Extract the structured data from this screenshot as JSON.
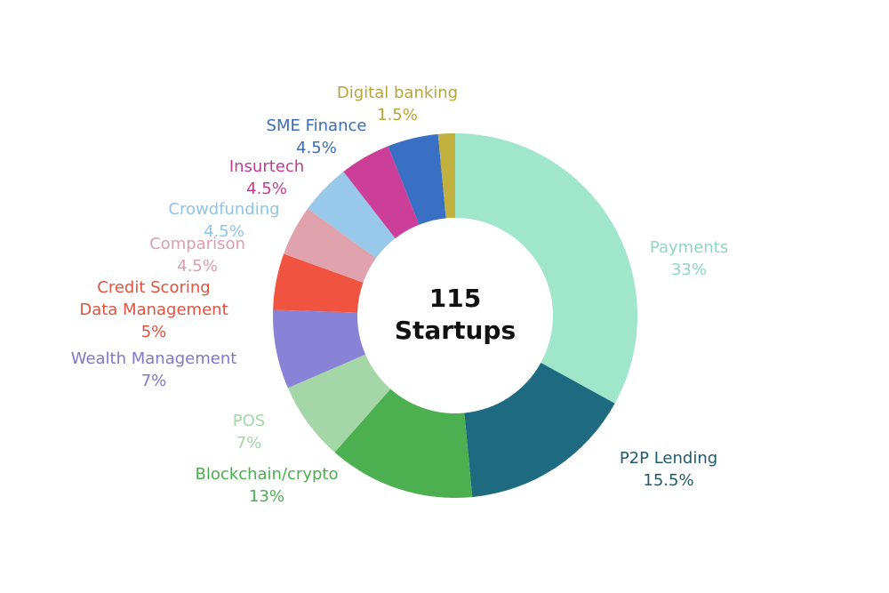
{
  "chart_data": {
    "type": "pie",
    "donut": true,
    "center_lines": [
      "115",
      "Startups"
    ],
    "categories": [
      "Payments",
      "P2P Lending",
      "Blockchain/crypto",
      "POS",
      "Wealth Management",
      "Credit Scoring\nData Management",
      "Comparison",
      "Crowdfunding",
      "Insurtech",
      "SME Finance",
      "Digital banking"
    ],
    "values": [
      33,
      15.5,
      13,
      7,
      7,
      5,
      4.5,
      4.5,
      4.5,
      4.5,
      1.5
    ],
    "value_labels": [
      "33%",
      "15.5%",
      "13%",
      "7%",
      "7%",
      "5%",
      "4.5%",
      "4.5%",
      "4.5%",
      "4.5%",
      "1.5%"
    ],
    "colors": [
      "#9fe6cb",
      "#1e6a80",
      "#4caf50",
      "#a5d6a7",
      "#8883d6",
      "#f05440",
      "#e0a3ae",
      "#99c9ea",
      "#cc3f98",
      "#3a70c4",
      "#c2b13f"
    ]
  }
}
